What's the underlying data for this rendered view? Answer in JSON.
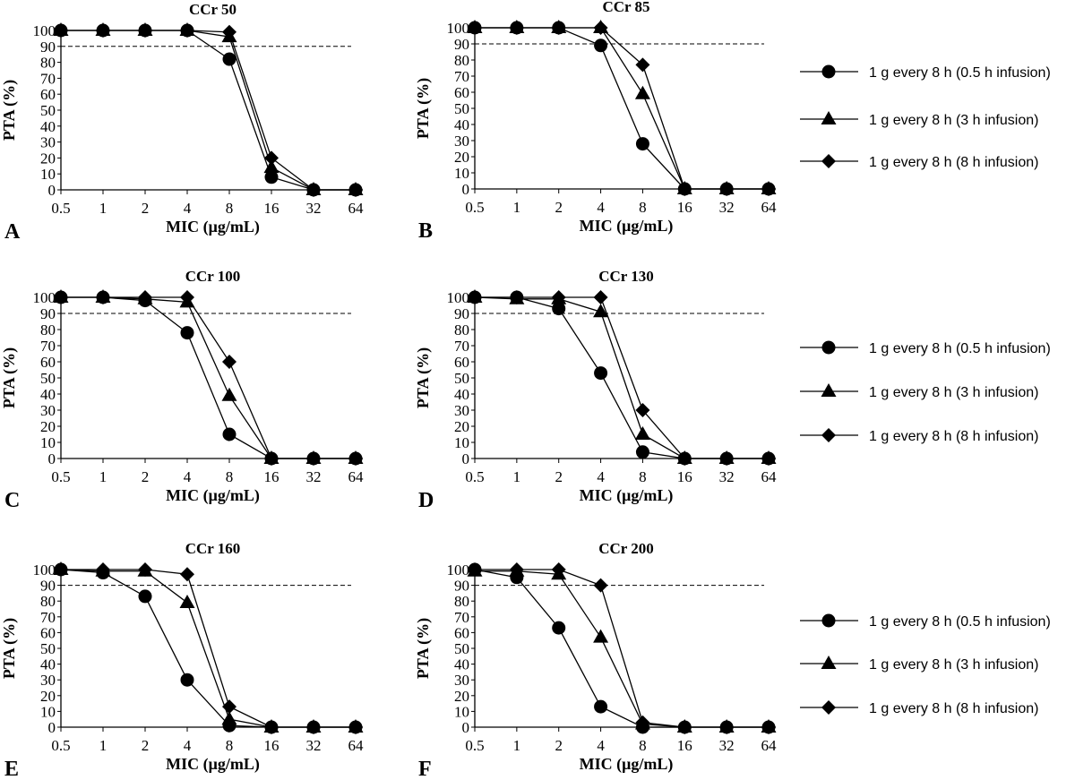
{
  "legend": {
    "entries": [
      {
        "label": "1 g every 8 h (0.5 h infusion)",
        "marker": "circle"
      },
      {
        "label": "1 g every 8 h (3 h infusion)",
        "marker": "triangle"
      },
      {
        "label": "1 g every 8 h (8 h infusion)",
        "marker": "diamond"
      }
    ]
  },
  "chart_data": [
    {
      "type": "line",
      "panel": "A",
      "title": "CCr 50",
      "xlabel": "MIC (μg/mL)",
      "ylabel": "PTA (%)",
      "x_scale": "log2",
      "x": [
        "0.5",
        "1",
        "2",
        "4",
        "8",
        "16",
        "32",
        "64"
      ],
      "ylim": [
        0,
        100
      ],
      "yticks": [
        0,
        10,
        20,
        30,
        40,
        50,
        60,
        70,
        80,
        90,
        100
      ],
      "reference_line": 90,
      "series": [
        {
          "name": "1 g every 8 h (0.5 h infusion)",
          "values": [
            100,
            100,
            100,
            100,
            82,
            8,
            0,
            0
          ]
        },
        {
          "name": "1 g every 8 h (3 h infusion)",
          "values": [
            100,
            100,
            100,
            100,
            96,
            14,
            0,
            0
          ]
        },
        {
          "name": "1 g every 8 h (8 h infusion)",
          "values": [
            100,
            100,
            100,
            100,
            99,
            20,
            0,
            0
          ]
        }
      ]
    },
    {
      "type": "line",
      "panel": "B",
      "title": "CCr 85",
      "xlabel": "MIC (μg/mL)",
      "ylabel": "PTA (%)",
      "x_scale": "log2",
      "x": [
        "0.5",
        "1",
        "2",
        "4",
        "8",
        "16",
        "32",
        "64"
      ],
      "ylim": [
        0,
        100
      ],
      "yticks": [
        0,
        10,
        20,
        30,
        40,
        50,
        60,
        70,
        80,
        90,
        100
      ],
      "reference_line": 90,
      "series": [
        {
          "name": "1 g every 8 h (0.5 h infusion)",
          "values": [
            100,
            100,
            100,
            89,
            28,
            0,
            0,
            0
          ]
        },
        {
          "name": "1 g every 8 h (3 h infusion)",
          "values": [
            100,
            100,
            100,
            100,
            59,
            0,
            0,
            0
          ]
        },
        {
          "name": "1 g every 8 h (8 h infusion)",
          "values": [
            100,
            100,
            100,
            100,
            77,
            0,
            0,
            0
          ]
        }
      ]
    },
    {
      "type": "line",
      "panel": "C",
      "title": "CCr 100",
      "xlabel": "MIC (μg/mL)",
      "ylabel": "PTA (%)",
      "x_scale": "log2",
      "x": [
        "0.5",
        "1",
        "2",
        "4",
        "8",
        "16",
        "32",
        "64"
      ],
      "ylim": [
        0,
        100
      ],
      "yticks": [
        0,
        10,
        20,
        30,
        40,
        50,
        60,
        70,
        80,
        90,
        100
      ],
      "reference_line": 90,
      "series": [
        {
          "name": "1 g every 8 h (0.5 h infusion)",
          "values": [
            100,
            100,
            98,
            78,
            15,
            0,
            0,
            0
          ]
        },
        {
          "name": "1 g every 8 h (3 h infusion)",
          "values": [
            100,
            100,
            99,
            97,
            39,
            0,
            0,
            0
          ]
        },
        {
          "name": "1 g every 8 h (8 h infusion)",
          "values": [
            100,
            100,
            100,
            100,
            60,
            0,
            0,
            0
          ]
        }
      ]
    },
    {
      "type": "line",
      "panel": "D",
      "title": "CCr 130",
      "xlabel": "MIC (μg/mL)",
      "ylabel": "PTA (%)",
      "x_scale": "log2",
      "x": [
        "0.5",
        "1",
        "2",
        "4",
        "8",
        "16",
        "32",
        "64"
      ],
      "ylim": [
        0,
        100
      ],
      "yticks": [
        0,
        10,
        20,
        30,
        40,
        50,
        60,
        70,
        80,
        90,
        100
      ],
      "reference_line": 90,
      "series": [
        {
          "name": "1 g every 8 h (0.5 h infusion)",
          "values": [
            100,
            100,
            93,
            53,
            4,
            0,
            0,
            0
          ]
        },
        {
          "name": "1 g every 8 h (3 h infusion)",
          "values": [
            100,
            99,
            99,
            91,
            15,
            0,
            0,
            0
          ]
        },
        {
          "name": "1 g every 8 h (8 h infusion)",
          "values": [
            100,
            100,
            100,
            100,
            30,
            0,
            0,
            0
          ]
        }
      ]
    },
    {
      "type": "line",
      "panel": "E",
      "title": "CCr 160",
      "xlabel": "MIC (μg/mL)",
      "ylabel": "PTA (%)",
      "x_scale": "log2",
      "x": [
        "0.5",
        "1",
        "2",
        "4",
        "8",
        "16",
        "32",
        "64"
      ],
      "ylim": [
        0,
        100
      ],
      "yticks": [
        0,
        10,
        20,
        30,
        40,
        50,
        60,
        70,
        80,
        90,
        100
      ],
      "reference_line": 90,
      "series": [
        {
          "name": "1 g every 8 h (0.5 h infusion)",
          "values": [
            100,
            98,
            83,
            30,
            1,
            0,
            0,
            0
          ]
        },
        {
          "name": "1 g every 8 h (3 h infusion)",
          "values": [
            100,
            99,
            99,
            79,
            5,
            0,
            0,
            0
          ]
        },
        {
          "name": "1 g every 8 h (8 h infusion)",
          "values": [
            100,
            100,
            100,
            97,
            13,
            0,
            0,
            0
          ]
        }
      ]
    },
    {
      "type": "line",
      "panel": "F",
      "title": "CCr 200",
      "xlabel": "MIC (μg/mL)",
      "ylabel": "PTA (%)",
      "x_scale": "log2",
      "x": [
        "0.5",
        "1",
        "2",
        "4",
        "8",
        "16",
        "32",
        "64"
      ],
      "ylim": [
        0,
        100
      ],
      "yticks": [
        0,
        10,
        20,
        30,
        40,
        50,
        60,
        70,
        80,
        90,
        100
      ],
      "reference_line": 90,
      "series": [
        {
          "name": "1 g every 8 h (0.5 h infusion)",
          "values": [
            100,
            95,
            63,
            13,
            0,
            0,
            0,
            0
          ]
        },
        {
          "name": "1 g every 8 h (3 h infusion)",
          "values": [
            99,
            99,
            97,
            57,
            2,
            0,
            0,
            0
          ]
        },
        {
          "name": "1 g every 8 h (8 h infusion)",
          "values": [
            100,
            100,
            100,
            90,
            3,
            0,
            0,
            0
          ]
        }
      ]
    }
  ]
}
